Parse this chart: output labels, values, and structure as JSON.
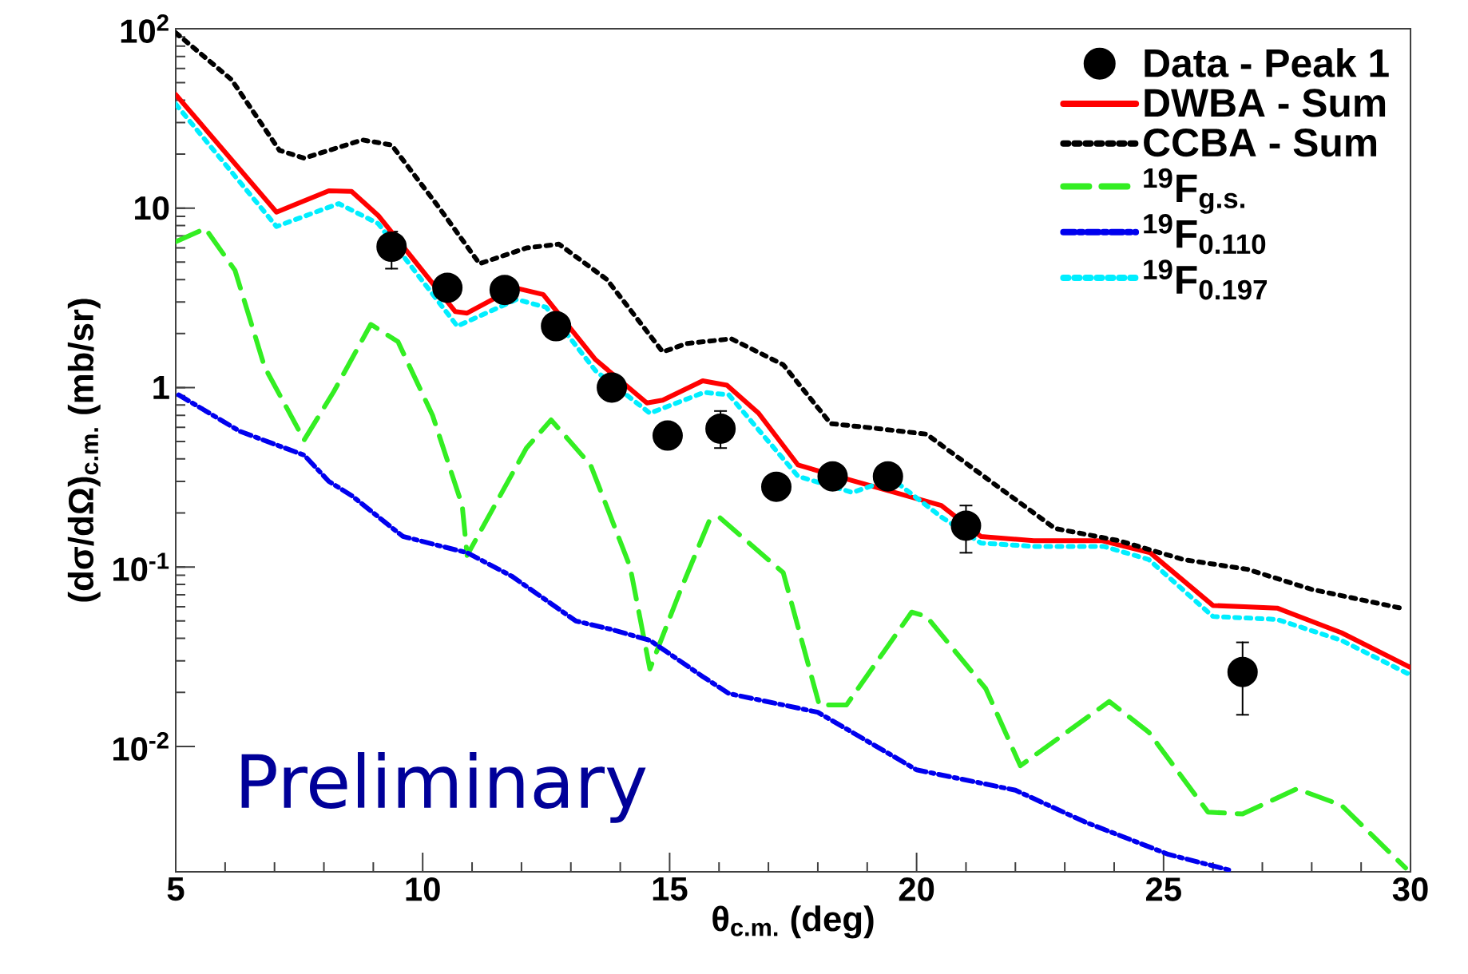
{
  "chart_data": {
    "type": "line",
    "xlabel": "θ$_{c.m.}$ (deg)",
    "ylabel": "(dσ/dΩ)$_{c.m.}$ (mb/sr)",
    "log": "y",
    "xlim": [
      5,
      30
    ],
    "ylim": [
      0.002,
      100
    ],
    "xticks": [
      5,
      10,
      15,
      20,
      25,
      30
    ],
    "yticks": [
      {
        "value": 0.01,
        "label": "10$^{-2}$"
      },
      {
        "value": 0.1,
        "label": "10$^{-1}$"
      },
      1,
      10,
      {
        "value": 100,
        "label": "10$^{2}$"
      }
    ],
    "legend": "top right",
    "annotations": [
      "Preliminary"
    ],
    "series": [
      {
        "name": "Data - Peak 1",
        "type": "scatter",
        "marker": "circle",
        "color": "#000000",
        "x": [
          9.37,
          10.5,
          11.66,
          12.7,
          13.83,
          14.96,
          16.03,
          17.16,
          18.3,
          19.42,
          21.0,
          26.6
        ],
        "values": [
          6.1,
          3.6,
          3.5,
          2.2,
          1.0,
          0.54,
          0.59,
          0.28,
          0.32,
          0.32,
          0.17,
          0.026
        ],
        "errors": [
          [
            4.6,
            7.4
          ],
          null,
          null,
          null,
          null,
          null,
          [
            0.46,
            0.74
          ],
          null,
          null,
          null,
          [
            0.12,
            0.22
          ],
          [
            0.015,
            0.038
          ]
        ]
      },
      {
        "name": "DWBA - Sum",
        "color": "#ff0000",
        "line_style": "solid",
        "marker": "none",
        "x": [
          5,
          7.04,
          8.1,
          8.56,
          9.1,
          10.66,
          10.9,
          11.86,
          12.44,
          13.5,
          14.54,
          14.86,
          15.67,
          16.16,
          16.8,
          17.6,
          18.75,
          19.55,
          20.5,
          21.3,
          22.37,
          23.76,
          24.73,
          26.0,
          27.3,
          28.6,
          30
        ],
        "values": [
          43,
          9.5,
          12.5,
          12.4,
          9.1,
          2.65,
          2.6,
          3.6,
          3.3,
          1.43,
          0.82,
          0.85,
          1.09,
          1.03,
          0.72,
          0.37,
          0.3,
          null,
          0.22,
          0.148,
          0.14,
          0.14,
          0.12,
          0.061,
          0.059,
          0.043,
          0.0275
        ]
      },
      {
        "name": "CCBA - Sum",
        "color": "#000000",
        "line_style": "dotted",
        "marker": "none",
        "x": [
          5,
          6.13,
          7.1,
          7.6,
          8.78,
          9.37,
          10.34,
          11.15,
          12.1,
          12.76,
          13.73,
          14.86,
          15.35,
          16.25,
          17.3,
          18.26,
          19.23,
          20.2,
          21.5,
          22.8,
          24.1,
          25.4,
          26.7,
          28.0,
          29.8
        ],
        "values": [
          95,
          52,
          21,
          19,
          24,
          22.5,
          10,
          4.9,
          6.0,
          6.3,
          4.0,
          1.58,
          1.76,
          1.87,
          1.34,
          0.63,
          0.59,
          0.55,
          0.3,
          0.164,
          0.14,
          0.11,
          0.097,
          0.075,
          0.059
        ]
      },
      {
        "name": "$^{19}$F$_{g.s.}$",
        "color": "#33ee22",
        "line_style": "dashed",
        "marker": "none",
        "x": [
          5,
          5.6,
          6.2,
          6.8,
          7.6,
          8.2,
          8.95,
          9.5,
          10.2,
          10.8,
          10.9,
          12.1,
          12.6,
          13.4,
          14.2,
          14.6,
          15.2,
          15.8,
          16.0,
          17.3,
          18.03,
          18.58,
          19.9,
          20.2,
          21.4,
          22.1,
          23.9,
          24.7,
          25.9,
          26.6,
          27.7,
          28.6,
          29.9
        ],
        "values": [
          6.5,
          7.7,
          4.5,
          1.3,
          0.51,
          0.95,
          2.25,
          1.8,
          0.7,
          0.22,
          0.116,
          0.46,
          0.66,
          0.37,
          0.1,
          0.027,
          0.072,
          0.18,
          0.19,
          0.093,
          0.017,
          0.017,
          0.056,
          0.053,
          0.021,
          0.0078,
          0.0178,
          0.012,
          0.0043,
          0.0042,
          0.0058,
          0.0047,
          0.0021
        ]
      },
      {
        "name": "$^{19}$F$_{0.110}$",
        "color": "#0000ee",
        "line_style": "dashdot",
        "marker": "none",
        "x": [
          5.06,
          6.3,
          7.6,
          8.1,
          8.56,
          9.6,
          10.9,
          11.8,
          13.1,
          13.8,
          14.6,
          15.67,
          16.2,
          18.0,
          20.0,
          22.0,
          23.4,
          25.1,
          26.35
        ],
        "values": [
          0.91,
          0.57,
          0.42,
          0.3,
          0.25,
          0.148,
          0.12,
          0.089,
          0.05,
          0.045,
          0.039,
          0.0245,
          0.0197,
          0.0155,
          0.0074,
          0.0057,
          0.0038,
          0.0025,
          0.00204
        ]
      },
      {
        "name": "$^{19}$F$_{0.197}$",
        "color": "#00eeff",
        "line_style": "dotted",
        "marker": "none",
        "x": [
          5,
          7.04,
          8.3,
          9.1,
          10.7,
          11.9,
          12.5,
          13.5,
          14.6,
          15.7,
          16.2,
          17.6,
          18.7,
          19.5,
          20.5,
          21.3,
          22.4,
          23.8,
          24.7,
          26.0,
          27.3,
          28.6,
          30
        ],
        "values": [
          38,
          7.9,
          10.6,
          8.2,
          2.2,
          3.1,
          2.8,
          1.24,
          0.72,
          0.94,
          0.91,
          0.32,
          0.26,
          0.31,
          0.19,
          0.136,
          0.13,
          0.13,
          0.11,
          0.053,
          0.051,
          0.039,
          0.025
        ]
      }
    ]
  }
}
